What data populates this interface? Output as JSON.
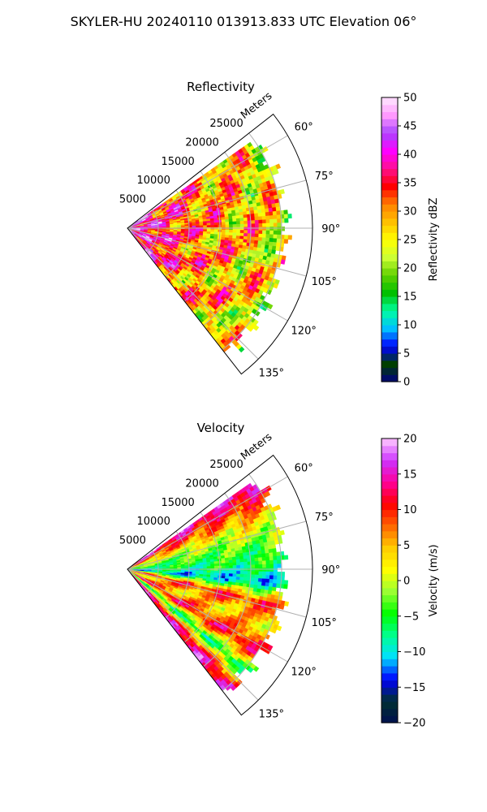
{
  "suptitle": "SKYLER-HU  20240110  013913.833 UTC Elevation 06°",
  "chart_data": [
    {
      "type": "heatmap",
      "projection": "polar-sector",
      "title": "Reflectivity",
      "radial_label": "Meters",
      "radial_ticks": [
        5000,
        10000,
        15000,
        20000,
        25000
      ],
      "radial_tick_labels": [
        "5000",
        "10000",
        "15000",
        "20000",
        "25000"
      ],
      "r_max": 30000,
      "data_max_range": 27000,
      "theta_range_deg": [
        52,
        142
      ],
      "theta_ticks_deg": [
        60,
        75,
        90,
        105,
        120,
        135
      ],
      "theta_tick_labels": [
        "60°",
        "75°",
        "90°",
        "105°",
        "120°",
        "135°"
      ],
      "grid": true,
      "colorbar": {
        "label": "Reflectivity dBZ",
        "vmin": 0,
        "vmax": 50,
        "ticks": [
          0,
          5,
          10,
          15,
          20,
          25,
          30,
          35,
          40,
          45,
          50
        ],
        "tick_labels": [
          "0",
          "5",
          "10",
          "15",
          "20",
          "25",
          "30",
          "35",
          "40",
          "45",
          "50"
        ],
        "colormap": "NWSRef"
      },
      "field_summary": {
        "near_range_dBZ": 42,
        "mid_range_dBZ": 30,
        "far_range_dBZ": 24,
        "typical_range_dBZ": [
          20,
          40
        ]
      }
    },
    {
      "type": "heatmap",
      "projection": "polar-sector",
      "title": "Velocity",
      "radial_label": "Meters",
      "radial_ticks": [
        5000,
        10000,
        15000,
        20000,
        25000
      ],
      "radial_tick_labels": [
        "5000",
        "10000",
        "15000",
        "20000",
        "25000"
      ],
      "r_max": 30000,
      "data_max_range": 27000,
      "theta_range_deg": [
        52,
        142
      ],
      "theta_ticks_deg": [
        60,
        75,
        90,
        105,
        120,
        135
      ],
      "theta_tick_labels": [
        "60°",
        "75°",
        "90°",
        "105°",
        "120°",
        "135°"
      ],
      "grid": true,
      "colorbar": {
        "label": "Velocity (m/s)",
        "vmin": -20,
        "vmax": 20,
        "ticks": [
          -20,
          -15,
          -10,
          -5,
          0,
          5,
          10,
          15,
          20
        ],
        "tick_labels": [
          "−20",
          "−15",
          "−10",
          "−5",
          "0",
          "5",
          "10",
          "15",
          "20"
        ],
        "colormap": "NWSVel"
      },
      "field_bands": [
        {
          "theta_deg": 55,
          "velocity": 15
        },
        {
          "theta_deg": 62,
          "velocity": 9
        },
        {
          "theta_deg": 70,
          "velocity": 2
        },
        {
          "theta_deg": 80,
          "velocity": -4
        },
        {
          "theta_deg": 88,
          "velocity": -6
        },
        {
          "theta_deg": 95,
          "velocity": -11
        },
        {
          "theta_deg": 103,
          "velocity": 10
        },
        {
          "theta_deg": 112,
          "velocity": 3
        },
        {
          "theta_deg": 122,
          "velocity": 12
        },
        {
          "theta_deg": 130,
          "velocity": -7
        },
        {
          "theta_deg": 138,
          "velocity": 14
        }
      ]
    }
  ],
  "colors": {
    "grid": "#b0b0b0",
    "ref_stops": [
      "#00007f",
      "#003f00",
      "#0000ff",
      "#00bfff",
      "#00ffa0",
      "#00c000",
      "#60d000",
      "#ccff33",
      "#ffff00",
      "#ffc000",
      "#ff8000",
      "#ff0000",
      "#ff1090",
      "#ff00ff",
      "#aa44ff",
      "#ff99ff",
      "#ffe8ff"
    ],
    "vel_stops": [
      "#001050",
      "#003030",
      "#0000ff",
      "#00e0ff",
      "#00ff90",
      "#00ff00",
      "#99ff33",
      "#ffff00",
      "#ffcc00",
      "#ff6600",
      "#ff0000",
      "#ff0099",
      "#cc33ff",
      "#ffccff"
    ]
  }
}
